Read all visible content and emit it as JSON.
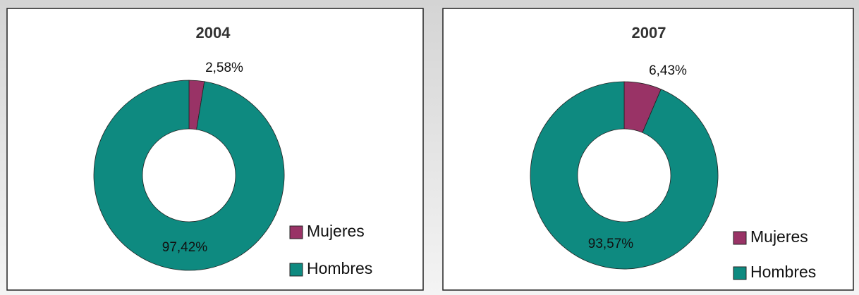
{
  "chart_data": [
    {
      "type": "donut",
      "title": "2004",
      "categories": [
        "Mujeres",
        "Hombres"
      ],
      "values": [
        2.58,
        97.42
      ],
      "value_labels": [
        "2,58%",
        "97,42%"
      ],
      "colors": [
        "#993366",
        "#0e8a80"
      ]
    },
    {
      "type": "donut",
      "title": "2007",
      "categories": [
        "Mujeres",
        "Hombres"
      ],
      "values": [
        6.43,
        93.57
      ],
      "value_labels": [
        "6,43%",
        "93,57%"
      ],
      "colors": [
        "#993366",
        "#0e8a80"
      ]
    }
  ]
}
